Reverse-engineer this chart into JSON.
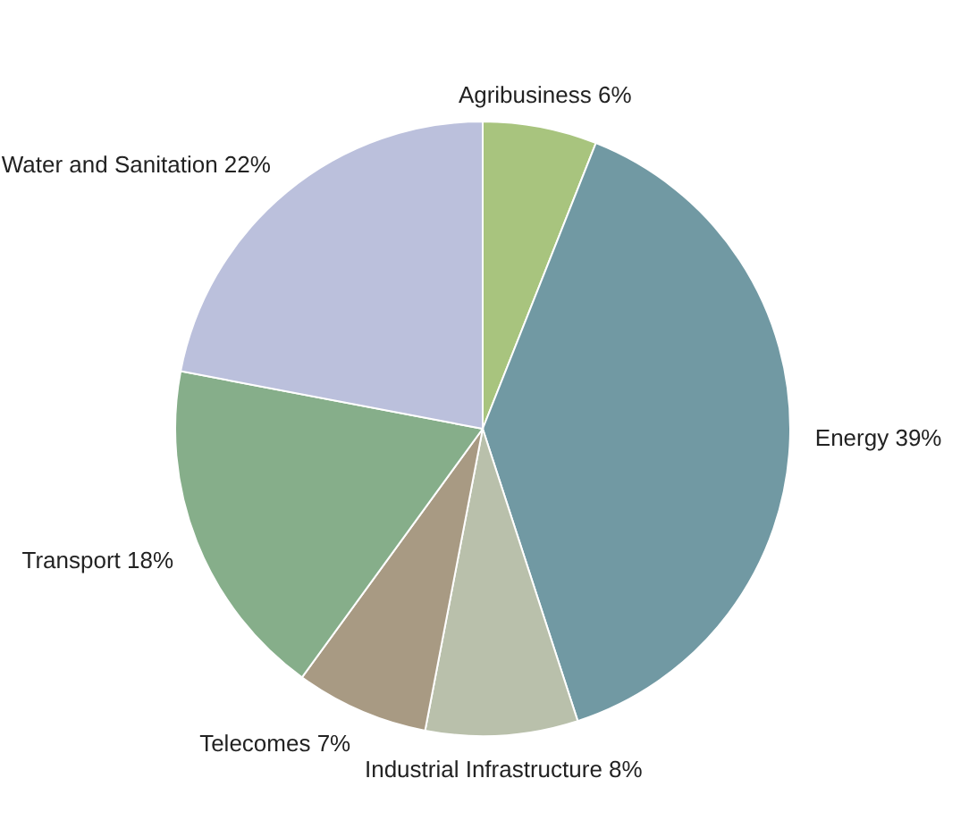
{
  "chart_data": {
    "type": "pie",
    "categories": [
      "Agribusiness",
      "Energy",
      "Industrial Infrastructure",
      "Telecomes",
      "Transport",
      "Water and Sanitation"
    ],
    "values": [
      6,
      39,
      8,
      7,
      18,
      22
    ],
    "colors": [
      "#a8c47e",
      "#7199a3",
      "#b9c0ab",
      "#a89a83",
      "#86ae8a",
      "#bbc0dc"
    ],
    "value_labels": [
      "6%",
      "39%",
      "8%",
      "7%",
      "18%",
      "22%"
    ]
  }
}
